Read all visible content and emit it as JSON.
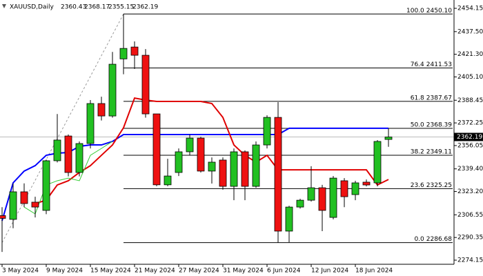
{
  "chart_data": {
    "type": "candlestick",
    "symbol": "XAUUSD,Daily",
    "categories": [
      "3 May 2024",
      null,
      null,
      null,
      "9 May 2024",
      null,
      null,
      null,
      "15 May 2024",
      null,
      null,
      null,
      "21 May 2024",
      null,
      null,
      null,
      "27 May 2024",
      null,
      null,
      null,
      "31 May 2024",
      null,
      null,
      null,
      "6 Jun 2024",
      null,
      null,
      null,
      "12 Jun 2024",
      null,
      null,
      null,
      "18 Jun 2024",
      null,
      null,
      null
    ],
    "open": [
      2306,
      2303.3,
      2323,
      2315.6,
      2309.7,
      2345.2,
      2362.9,
      2336.8,
      2357.5,
      2386.1,
      2377.2,
      2418,
      2426.5,
      2420.6,
      2378.7,
      2328,
      2336.8,
      2351.6,
      2361.4,
      2337.8,
      2345.7,
      2326.9,
      2351.6,
      2326.9,
      2356.5,
      2376.2,
      2294.9,
      2312.1,
      2317,
      2325.9,
      2304.7,
      2330.9,
      2321,
      2329.9,
      2329.4,
      2360.43
    ],
    "high": [
      2312,
      2329,
      2329,
      2319.5,
      2346,
      2378.6,
      2364,
      2359,
      2388.6,
      2391,
      2423,
      2450.1,
      2430.5,
      2425,
      2378.7,
      2346.6,
      2354,
      2363.9,
      2362.4,
      2347.6,
      2347.6,
      2354,
      2352.6,
      2359,
      2377.7,
      2387.1,
      2313,
      2318,
      2341.3,
      2328,
      2334.3,
      2332.8,
      2330.9,
      2331.8,
      2360,
      2368.17
    ],
    "low": [
      2280,
      2297,
      2312,
      2304.7,
      2307,
      2344,
      2334,
      2334,
      2354,
      2374,
      2376,
      2407,
      2410.8,
      2376,
      2327,
      2327,
      2334.3,
      2349,
      2336.8,
      2328.9,
      2324.5,
      2317,
      2317,
      2325.9,
      2354,
      2286.68,
      2287,
      2311,
      2316,
      2294.9,
      2303.3,
      2312,
      2317,
      2326.9,
      2326.9,
      2355.15
    ],
    "close": [
      2304,
      2323,
      2314.6,
      2312.1,
      2345.2,
      2360,
      2336.8,
      2357.5,
      2386.1,
      2377.2,
      2414.2,
      2425.5,
      2420.6,
      2378.7,
      2328,
      2334.3,
      2351.6,
      2361.4,
      2337.8,
      2344.2,
      2326.9,
      2351.6,
      2326.9,
      2356.5,
      2376.2,
      2294.9,
      2312.1,
      2317,
      2325.9,
      2309.7,
      2332.8,
      2319.5,
      2329.4,
      2327.9,
      2359,
      2362.19
    ],
    "up_color": "#22c022",
    "down_color": "#ee1111",
    "indicator_lines": [
      {
        "color": "#0000ff",
        "values": [
          2302.3,
          2329.4,
          2337.8,
          2341.7,
          2349.1,
          2350.6,
          2351.1,
          2355.5,
          2356.5,
          2356.5,
          2359.0,
          2363.9,
          2363.9,
          2363.9,
          2363.9,
          2363.9,
          2363.9,
          2363.9,
          2363.9,
          2363.9,
          2363.9,
          2363.9,
          2363.9,
          2363.9,
          2363.9,
          2363.9,
          2368.4,
          2368.4,
          2368.4,
          2368.4,
          2368.4,
          2368.4,
          2368.4,
          2368.4,
          2368.4,
          2368.4
        ]
      },
      {
        "color": "#e00000",
        "values": [
          null,
          null,
          null,
          2314.6,
          2317.0,
          2327.9,
          2330.9,
          2336.8,
          2341.7,
          2349.1,
          2356.5,
          2368.8,
          2390.0,
          2388.6,
          2387.6,
          2387.6,
          2387.6,
          2387.6,
          2387.6,
          2386.1,
          2376.2,
          2356.5,
          2349.1,
          2344.2,
          2349.1,
          2338.7,
          2338.7,
          2338.7,
          2338.7,
          2338.7,
          2338.7,
          2338.7,
          2338.7,
          2338.7,
          2327.9,
          2331.8
        ]
      },
      {
        "color": "#33cc33",
        "values": [
          null,
          null,
          2312.1,
          2307.2,
          2327.9,
          2330.9,
          2332.8,
          2330.9,
          2349.1,
          2354.0,
          2359.0,
          null,
          null,
          null,
          null,
          null,
          null,
          null,
          null,
          null,
          null,
          null,
          null,
          null,
          null,
          null,
          null,
          null,
          null,
          null,
          null,
          null,
          null,
          null,
          null,
          null
        ]
      }
    ],
    "fib_levels": [
      {
        "label": "100.0",
        "value": 2450.1,
        "value_label": "2450.10"
      },
      {
        "label": "76.4",
        "value": 2411.53,
        "value_label": "2411.53"
      },
      {
        "label": "61.8",
        "value": 2387.67,
        "value_label": "2387.67"
      },
      {
        "label": "50.0",
        "value": 2368.39,
        "value_label": "2368.39"
      },
      {
        "label": "38.2",
        "value": 2349.11,
        "value_label": "2349.11"
      },
      {
        "label": "23.6",
        "value": 2325.25,
        "value_label": "2325.25"
      },
      {
        "label": "0.0",
        "value": 2286.68,
        "value_label": "2286.68"
      }
    ],
    "ylim": [
      2271.2,
      2460.1
    ],
    "yticks": [
      2454.15,
      {
        "value": 2437.5,
        "label": "2437.50"
      },
      {
        "value": 2421.3,
        "label": "2421.30"
      },
      {
        "value": 2405.1,
        "label": "2405.10"
      },
      2388.45,
      2372.25,
      2356.05,
      {
        "value": 2339.4,
        "label": "2339.40"
      },
      {
        "value": 2323.2,
        "label": "2323.20"
      },
      2306.55,
      2290.35,
      2274.15
    ]
  }
}
